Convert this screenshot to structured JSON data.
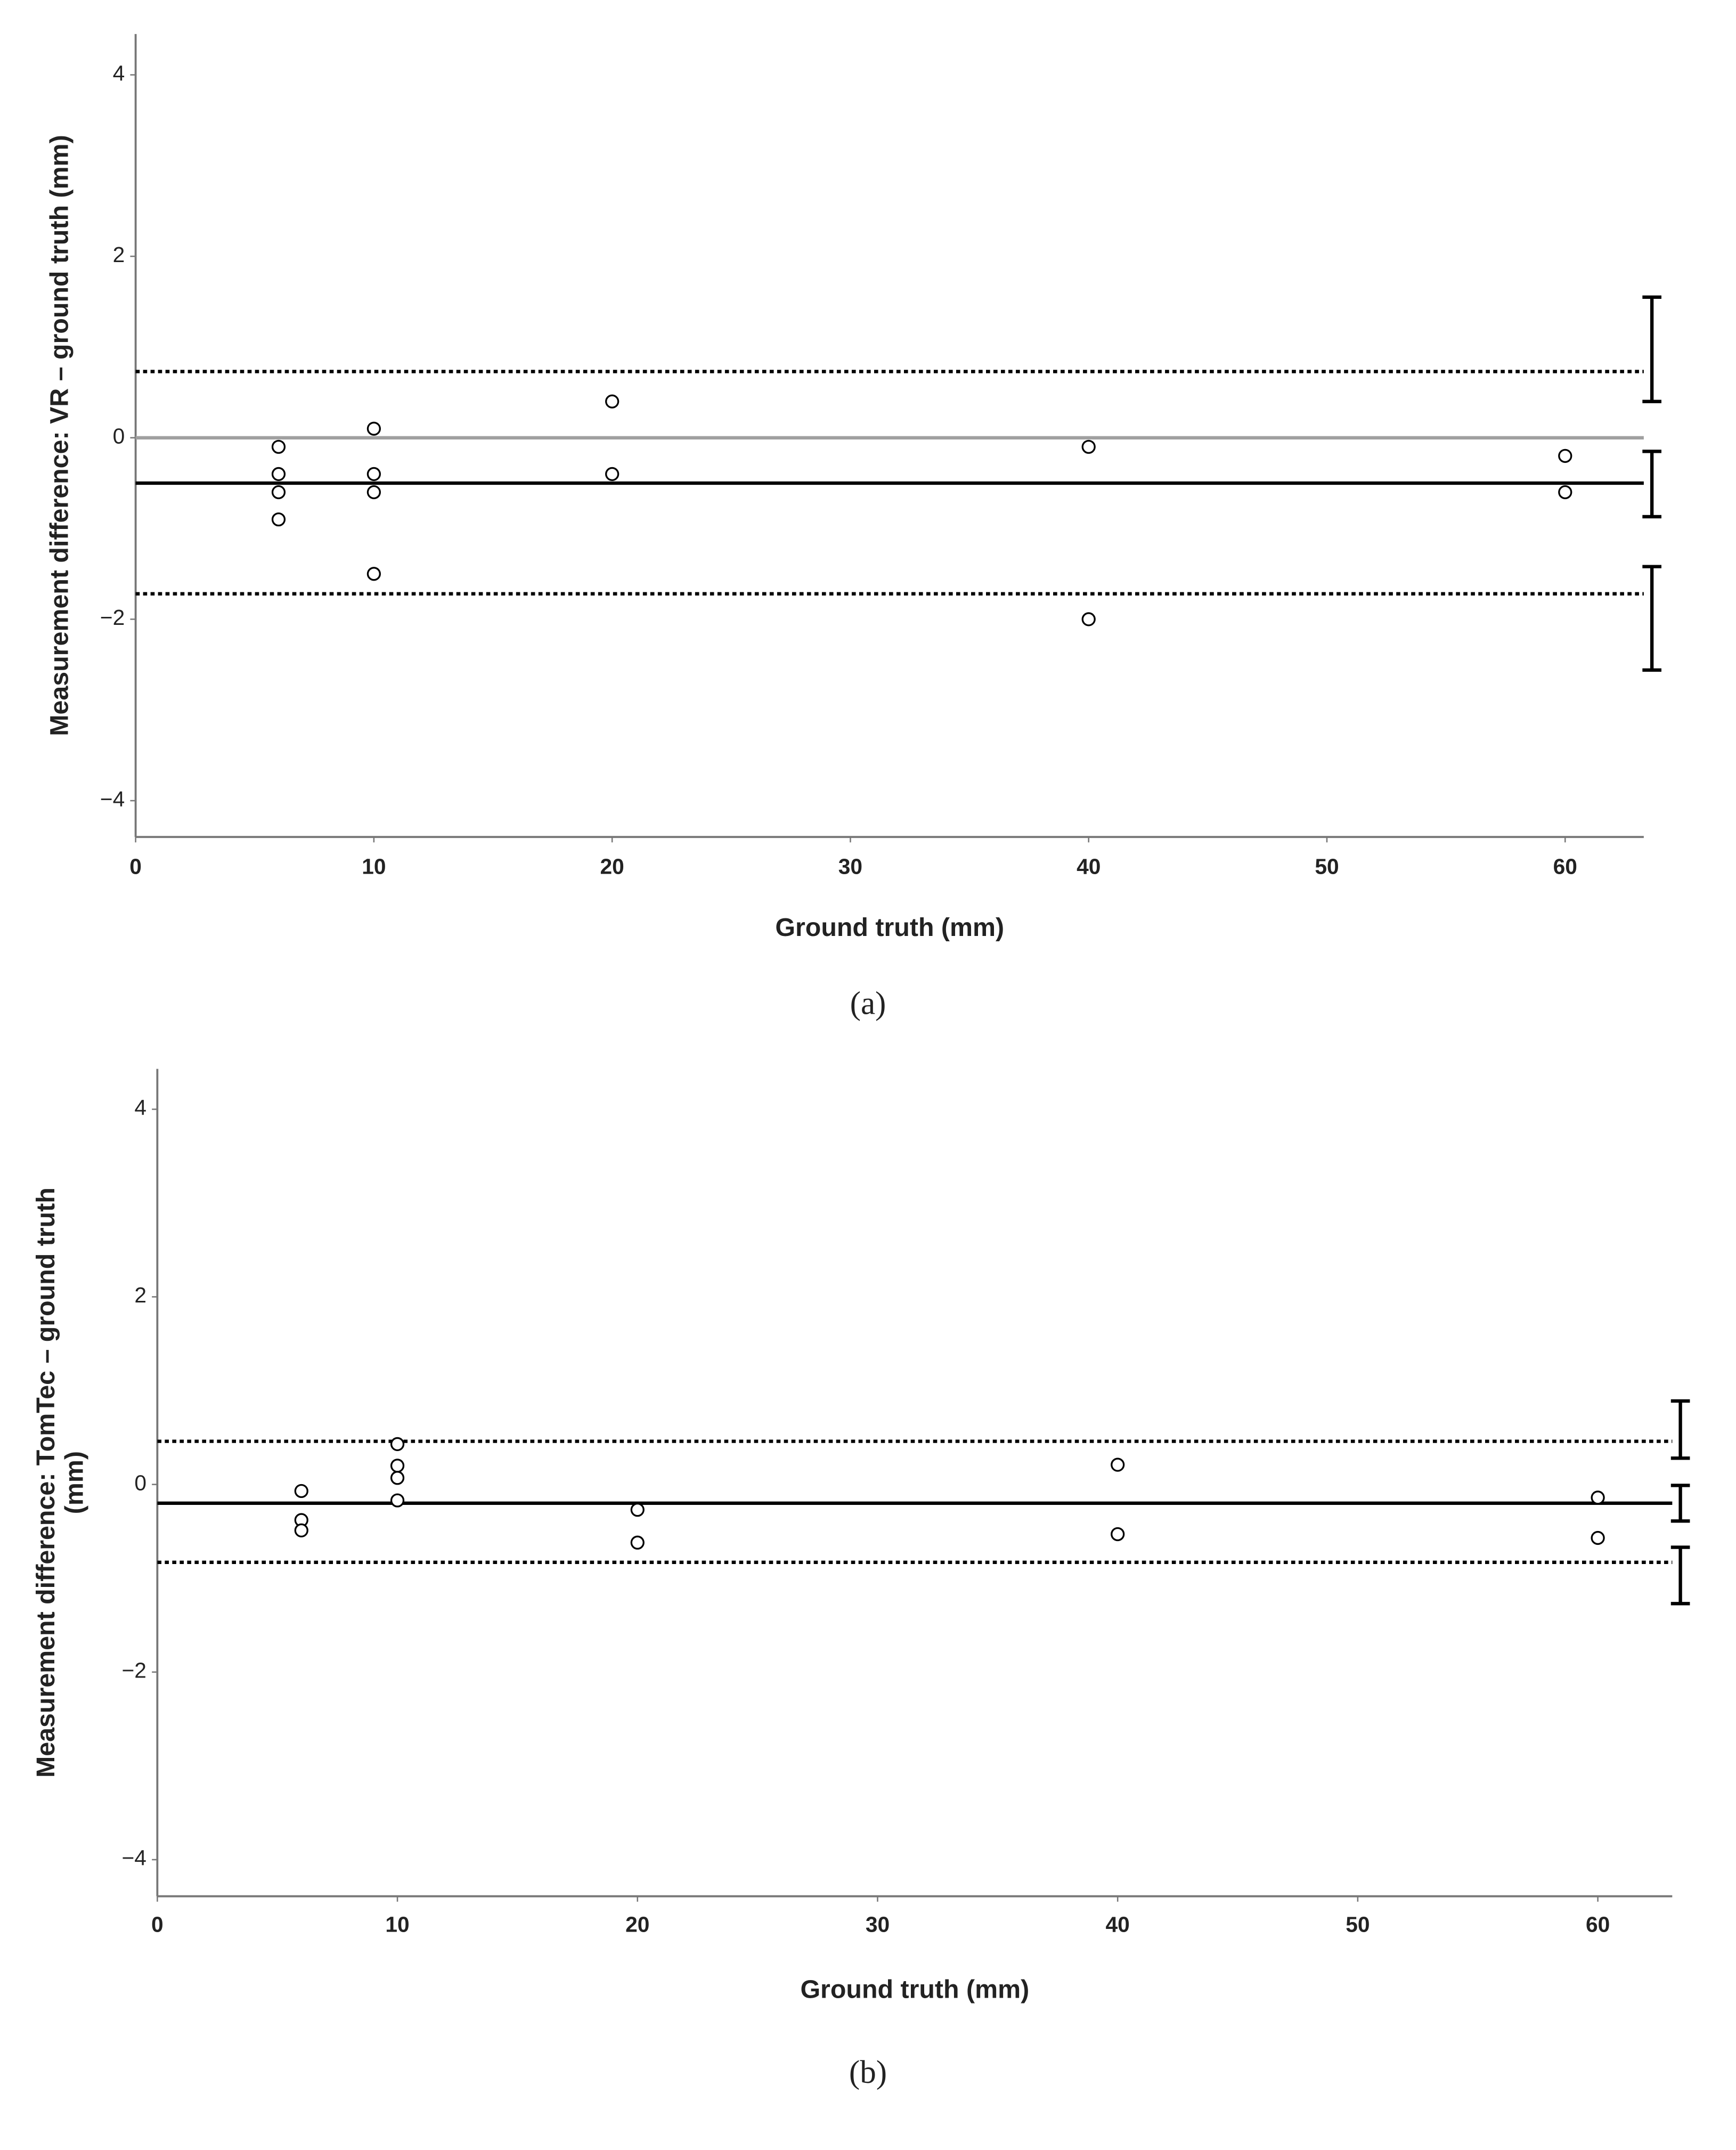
{
  "chart_data": [
    {
      "type": "scatter",
      "caption": "(a)",
      "x_label": "Ground truth (mm)",
      "y_label": [
        "Measurement difference: VR – ground truth (mm)"
      ],
      "xlim": [
        0,
        63.3
      ],
      "xticks": [
        0,
        10,
        20,
        30,
        40,
        50,
        60
      ],
      "ylim": [
        -4.4,
        4.45
      ],
      "yticks": [
        {
          "value": -4,
          "label": "−4"
        },
        {
          "value": -2,
          "label": "−2"
        },
        0,
        2,
        4
      ],
      "point_color": "#000000",
      "x": [
        6,
        6,
        6,
        6,
        10,
        10,
        10,
        10,
        20,
        20,
        40,
        40,
        60,
        60
      ],
      "y": [
        -0.1,
        -0.4,
        -0.6,
        -0.9,
        0.1,
        -0.4,
        -0.6,
        -1.5,
        0.4,
        -0.4,
        -0.1,
        -2.0,
        -0.2,
        -0.6
      ],
      "hlines": [
        {
          "value": 0,
          "style": "solid",
          "color": "#a0a0a0"
        },
        {
          "value": -0.5,
          "style": "solid",
          "color": "#000000"
        },
        {
          "value": 0.73,
          "style": "dotted",
          "color": "#000000"
        },
        {
          "value": -1.72,
          "style": "dotted",
          "color": "#000000"
        }
      ],
      "ci": [
        {
          "low": 0.4,
          "high": 1.55
        },
        {
          "low": -0.87,
          "high": -0.15
        },
        {
          "low": -2.56,
          "high": -1.42
        }
      ]
    },
    {
      "type": "scatter",
      "caption": "(b)",
      "x_label": "Ground truth (mm)",
      "y_label": [
        "Measurement difference: TomTec – ground truth",
        "(mm)"
      ],
      "xlim": [
        0,
        63.1
      ],
      "xticks": [
        0,
        10,
        20,
        30,
        40,
        50,
        60
      ],
      "ylim": [
        -4.39,
        4.43
      ],
      "yticks": [
        {
          "value": -4,
          "label": "−4"
        },
        {
          "value": -2,
          "label": "−2"
        },
        0,
        2,
        4
      ],
      "point_color": "#000000",
      "x": [
        6,
        6,
        6,
        10,
        10,
        10,
        10,
        20,
        20,
        40,
        40,
        60,
        60
      ],
      "y": [
        -0.07,
        -0.38,
        -0.49,
        0.43,
        0.2,
        0.07,
        -0.17,
        -0.27,
        -0.62,
        0.21,
        -0.53,
        -0.14,
        -0.57
      ],
      "hlines": [
        {
          "value": -0.2,
          "style": "solid",
          "color": "#000000"
        },
        {
          "value": 0.46,
          "style": "dotted",
          "color": "#000000"
        },
        {
          "value": -0.83,
          "style": "dotted",
          "color": "#000000"
        }
      ],
      "ci": [
        {
          "low": 0.28,
          "high": 0.89
        },
        {
          "low": -0.39,
          "high": -0.01
        },
        {
          "low": -1.27,
          "high": -0.67
        }
      ]
    }
  ]
}
